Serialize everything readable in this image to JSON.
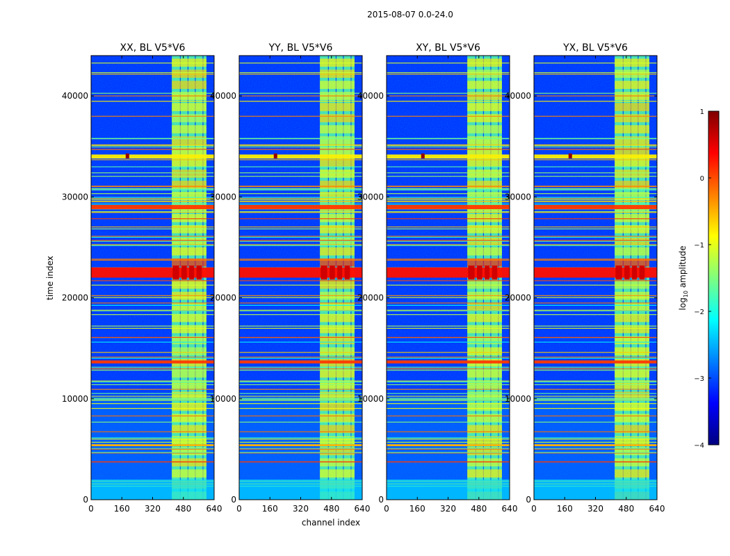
{
  "figure": {
    "suptitle": "2015-08-07 0.0-24.0",
    "xlabel": "channel index",
    "ylabel": "time index"
  },
  "chart_data": {
    "type": "heatmap",
    "title": "2015-08-07 0.0-24.0",
    "xlabel": "channel index",
    "ylabel": "time index",
    "xlim": [
      0,
      640
    ],
    "ylim": [
      0,
      44000
    ],
    "x_ticks": [
      "0",
      "160",
      "320",
      "480",
      "640"
    ],
    "y_ticks": [
      "0",
      "10000",
      "20000",
      "30000",
      "40000"
    ],
    "colorbar": {
      "label": "log10 amplitude",
      "label_main": "log",
      "label_sub": "10",
      "label_rest": " amplitude",
      "range": [
        -4,
        1
      ],
      "ticks": [
        "1",
        "0",
        "−1",
        "−2",
        "−3",
        "−4"
      ],
      "colormap": "jet",
      "colors": [
        "#00007f",
        "#0000ff",
        "#007fff",
        "#00ffff",
        "#7fff7f",
        "#ffff00",
        "#ff7f00",
        "#ff0000",
        "#7f0000"
      ]
    },
    "panels": [
      {
        "title": "XX, BL V5*V6"
      },
      {
        "title": "YY, BL V5*V6"
      },
      {
        "title": "XY, BL V5*V6"
      },
      {
        "title": "YX, BL V5*V6"
      }
    ],
    "bands": [
      {
        "time_range": [
          0,
          2000
        ],
        "level": -2.3,
        "note": "background noise"
      },
      {
        "time_range": [
          3700,
          3800
        ],
        "level": 0.1,
        "note": "RFI line"
      },
      {
        "time_range": [
          5300,
          5500
        ],
        "level": -0.5,
        "note": "channel 420-600"
      },
      {
        "time_range": [
          9800,
          10100
        ],
        "level": -1.6,
        "note": "horizontal band"
      },
      {
        "time_range": [
          13500,
          13800
        ],
        "level": 0.1,
        "note": "RFI line"
      },
      {
        "time_range": [
          22000,
          23000
        ],
        "level": 0.3,
        "note": "strong event"
      },
      {
        "time_range": [
          28800,
          29200
        ],
        "level": 0.1,
        "note": "RFI line"
      },
      {
        "time_range": [
          33800,
          34200
        ],
        "level": -0.8,
        "note": "horizontal band"
      }
    ]
  }
}
